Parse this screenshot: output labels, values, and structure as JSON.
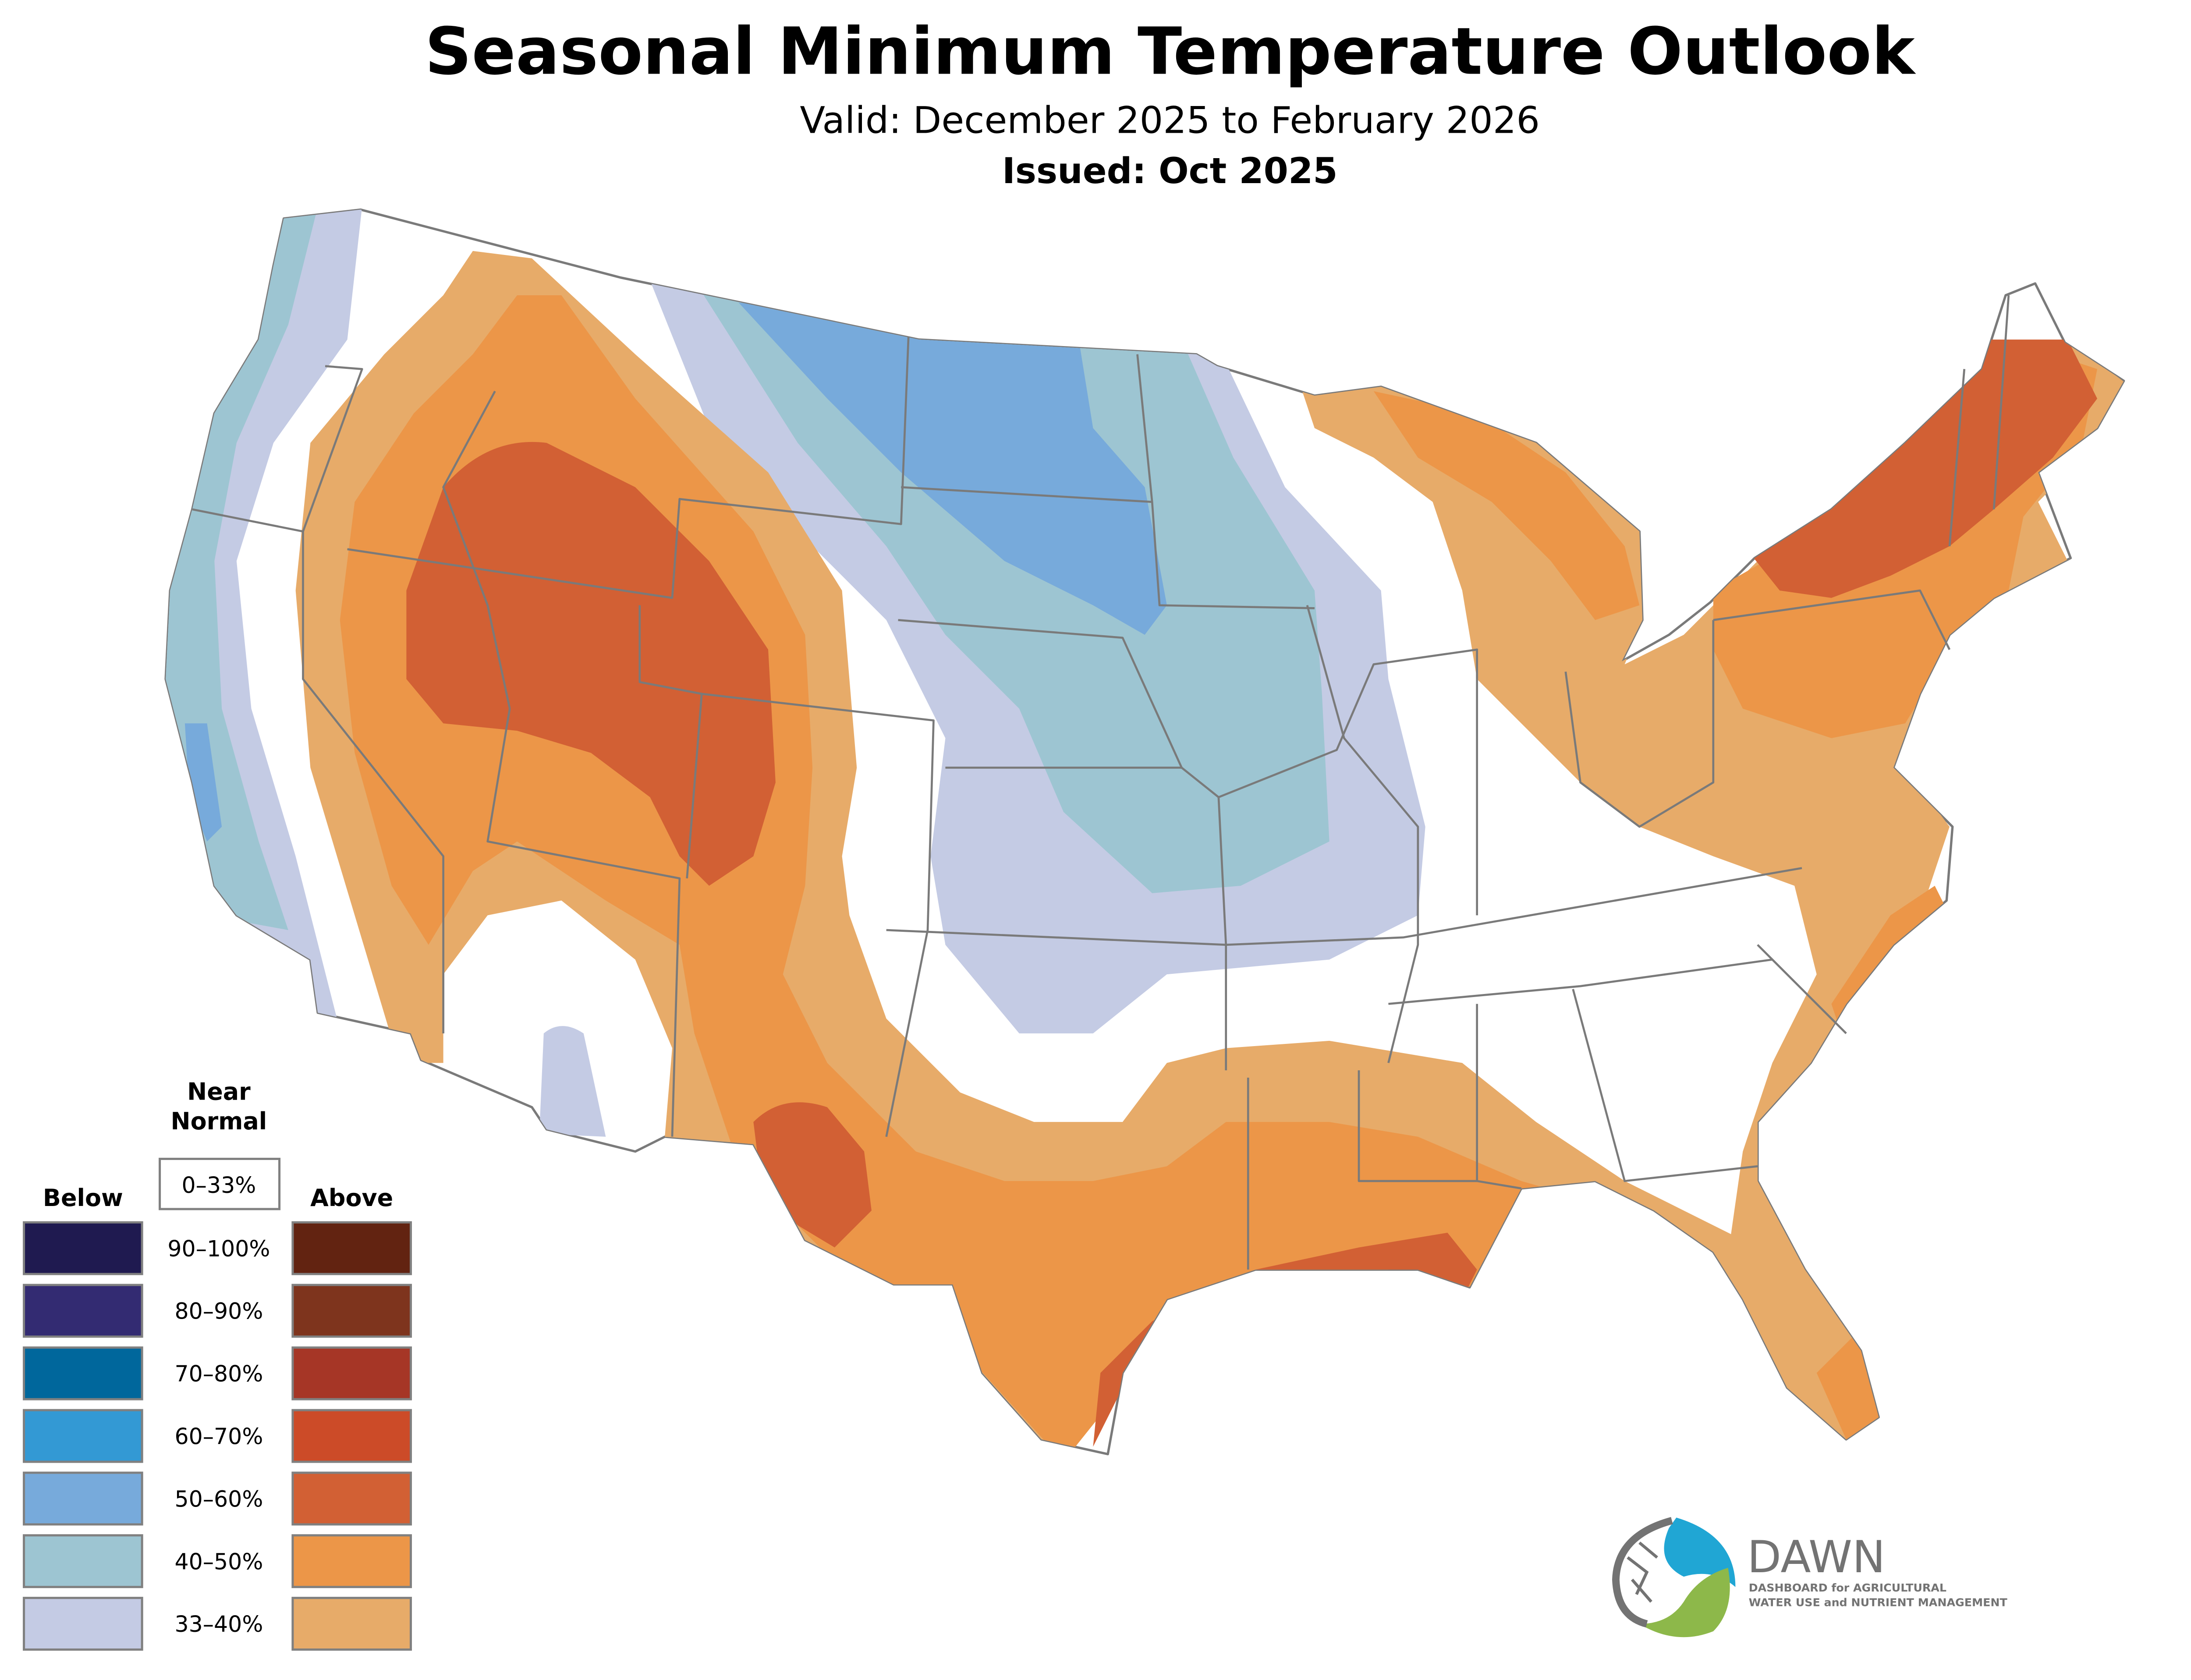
{
  "header": {
    "title": "Seasonal Minimum Temperature Outlook",
    "valid": "Valid: December 2025 to February 2026",
    "issued": "Issued: Oct 2025"
  },
  "legend": {
    "near_normal_heading_line1": "Near",
    "near_normal_heading_line2": "Normal",
    "near_normal_range": "0–33%",
    "below_heading": "Below",
    "above_heading": "Above",
    "rows": [
      {
        "range": "90–100%",
        "below_color": "#1f1a50",
        "above_color": "#622311"
      },
      {
        "range": "80–90%",
        "below_color": "#332b72",
        "above_color": "#7e341d"
      },
      {
        "range": "70–80%",
        "below_color": "#00679c",
        "above_color": "#a63626"
      },
      {
        "range": "60–70%",
        "below_color": "#3399d4",
        "above_color": "#cc4b28"
      },
      {
        "range": "50–60%",
        "below_color": "#77aadb",
        "above_color": "#d26034"
      },
      {
        "range": "40–50%",
        "below_color": "#9dc5d2",
        "above_color": "#ec9648"
      },
      {
        "range": "33–40%",
        "below_color": "#c4cbe4",
        "above_color": "#e7ab69"
      }
    ]
  },
  "map": {
    "description": "Contiguous United States probability shading",
    "colors": {
      "below_33_40": "#c4cbe4",
      "below_40_50": "#9dc5d2",
      "below_50_60": "#77aadb",
      "above_33_40": "#e7ab69",
      "above_40_50": "#ec9648",
      "above_50_60": "#d26034",
      "border": "#7a7a7a"
    }
  },
  "logo": {
    "name": "DAWN",
    "tagline_line1": "DASHBOARD for AGRICULTURAL",
    "tagline_line2": "WATER USE and NUTRIENT MANAGEMENT",
    "colors": {
      "blue": "#20a6d4",
      "green": "#8db84a",
      "gray": "#737373"
    }
  }
}
